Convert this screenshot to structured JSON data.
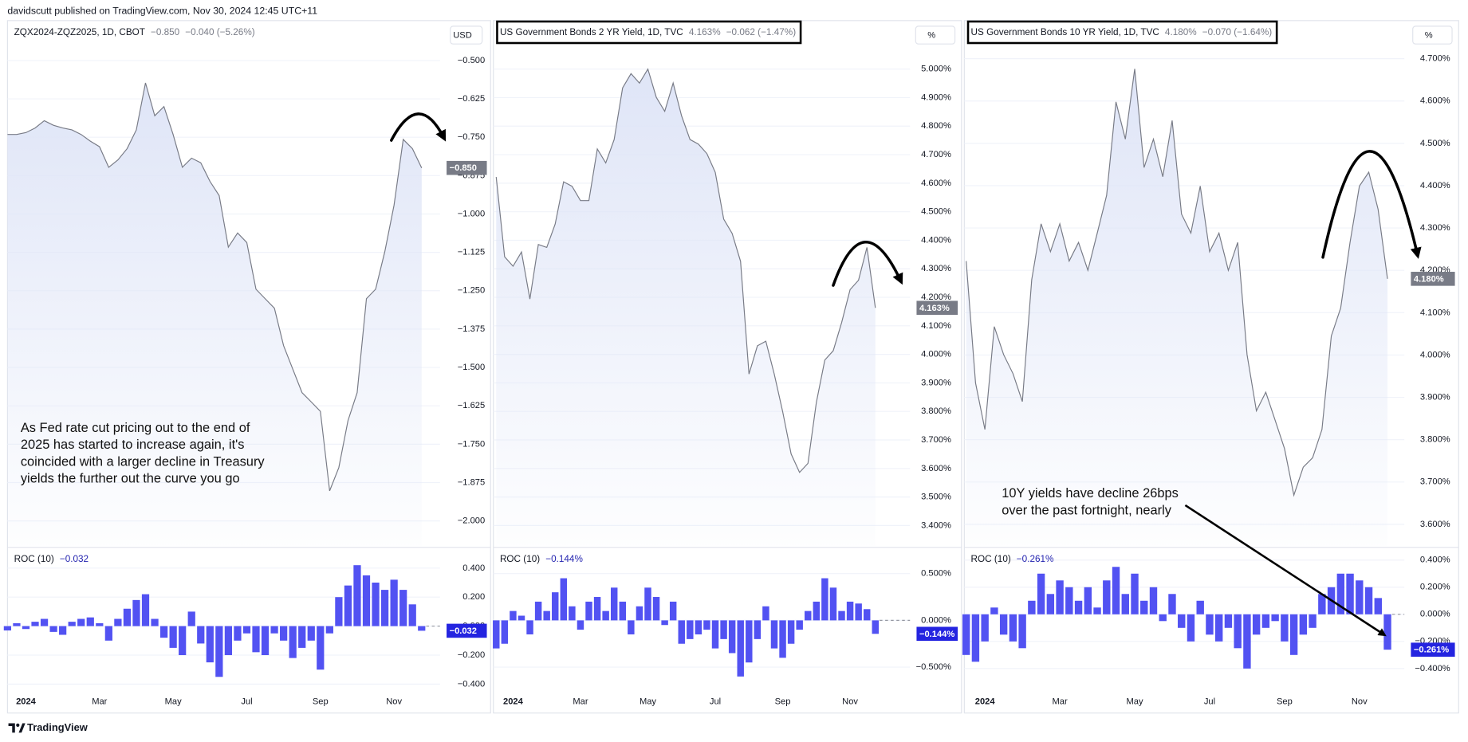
{
  "header": "davidscutt published on TradingView.com, Nov 30, 2024 12:45 UTC+11",
  "footer": "TradingView",
  "chart_data": [
    {
      "type": "area",
      "title": "ZQX2024-ZQZ2025, 1D, CBOT",
      "last_label": "−0.850",
      "change_label": "−0.040 (−5.26%)",
      "unit": "USD",
      "line_color": "#787b86",
      "area_color": "#dfe5f7",
      "tag_color": "#787b86",
      "grid": true,
      "categories": [
        null,
        null,
        "2024",
        null,
        null,
        null,
        null,
        null,
        null,
        null,
        "Mar",
        null,
        null,
        null,
        null,
        null,
        null,
        null,
        "May",
        null,
        null,
        null,
        null,
        null,
        null,
        null,
        "Jul",
        null,
        null,
        null,
        null,
        null,
        null,
        null,
        "Sep",
        null,
        null,
        null,
        null,
        null,
        null,
        null,
        "Nov",
        null,
        null,
        null
      ],
      "values": [
        -0.741,
        -0.741,
        -0.735,
        -0.72,
        -0.696,
        -0.711,
        -0.72,
        -0.726,
        -0.741,
        -0.763,
        -0.781,
        -0.848,
        -0.824,
        -0.787,
        -0.726,
        -0.573,
        -0.68,
        -0.65,
        -0.741,
        -0.848,
        -0.818,
        -0.833,
        -0.894,
        -0.94,
        -1.108,
        -1.062,
        -1.093,
        -1.245,
        -1.276,
        -1.307,
        -1.429,
        -1.505,
        -1.582,
        -1.612,
        -1.643,
        -1.902,
        -1.826,
        -1.673,
        -1.582,
        -1.276,
        -1.245,
        -1.123,
        -0.971,
        -0.757,
        -0.787,
        -0.85
      ],
      "ylim": [
        -2.08,
        -0.37
      ],
      "yticks": [
        {
          "value": -0.5,
          "label": "−0.500"
        },
        {
          "value": -0.625,
          "label": "−0.625"
        },
        {
          "value": -0.75,
          "label": "−0.750"
        },
        {
          "value": -0.875,
          "label": "−0.875"
        },
        {
          "value": -1.0,
          "label": "−1.000"
        },
        {
          "value": -1.125,
          "label": "−1.125"
        },
        {
          "value": -1.25,
          "label": "−1.250"
        },
        {
          "value": -1.375,
          "label": "−1.375"
        },
        {
          "value": -1.5,
          "label": "−1.500"
        },
        {
          "value": -1.625,
          "label": "−1.625"
        },
        {
          "value": -1.75,
          "label": "−1.750"
        },
        {
          "value": -1.875,
          "label": "−1.875"
        },
        {
          "value": -2.0,
          "label": "−2.000"
        }
      ],
      "annotation": [
        "As Fed rate cut pricing out to the end of",
        "2025 has started to increase again, it's",
        "coincided with a larger decline in Treasury",
        "yields the further out the curve you go"
      ],
      "roc": {
        "type": "bar",
        "title": "ROC (10)",
        "last_label": "−0.032",
        "color": "#5252f2",
        "tag_color": "#2424e0",
        "values": [
          -0.03,
          0.02,
          -0.02,
          0.03,
          0.05,
          -0.04,
          -0.06,
          0.03,
          0.05,
          0.06,
          0.02,
          -0.1,
          0.05,
          0.12,
          0.18,
          0.22,
          0.05,
          -0.08,
          -0.15,
          -0.2,
          0.1,
          -0.12,
          -0.25,
          -0.35,
          -0.2,
          -0.1,
          -0.05,
          -0.18,
          -0.2,
          -0.05,
          -0.1,
          -0.22,
          -0.15,
          -0.1,
          -0.3,
          -0.05,
          0.2,
          0.28,
          0.42,
          0.35,
          0.3,
          0.25,
          0.32,
          0.25,
          0.15,
          -0.032
        ],
        "ylim": [
          -0.47,
          0.53
        ],
        "yticks": [
          {
            "value": 0.4,
            "label": "0.400"
          },
          {
            "value": 0.2,
            "label": "0.200"
          },
          {
            "value": 0,
            "label": "0.000"
          },
          {
            "value": -0.2,
            "label": "−0.200"
          },
          {
            "value": -0.4,
            "label": "−0.400"
          }
        ]
      }
    },
    {
      "type": "area",
      "title": "US Government Bonds 2 YR Yield, 1D, TVC",
      "last_label": "4.163%",
      "change_label": "−0.062 (−1.47%)",
      "unit": "%",
      "line_color": "#787b86",
      "area_color": "#dfe5f7",
      "tag_color": "#787b86",
      "grid": true,
      "categories": [
        null,
        null,
        "2024",
        null,
        null,
        null,
        null,
        null,
        null,
        null,
        "Mar",
        null,
        null,
        null,
        null,
        null,
        null,
        null,
        "May",
        null,
        null,
        null,
        null,
        null,
        null,
        null,
        "Jul",
        null,
        null,
        null,
        null,
        null,
        null,
        null,
        "Sep",
        null,
        null,
        null,
        null,
        null,
        null,
        null,
        "Nov",
        null,
        null,
        null
      ],
      "values": [
        4.622,
        4.342,
        4.309,
        4.359,
        4.194,
        4.385,
        4.375,
        4.457,
        4.605,
        4.589,
        4.539,
        4.539,
        4.72,
        4.671,
        4.753,
        4.934,
        4.984,
        4.951,
        5.0,
        4.901,
        4.852,
        4.951,
        4.836,
        4.753,
        4.737,
        4.704,
        4.638,
        4.474,
        4.424,
        4.326,
        3.931,
        4.03,
        4.046,
        3.931,
        3.799,
        3.651,
        3.586,
        3.618,
        3.832,
        3.98,
        4.013,
        4.112,
        4.227,
        4.26,
        4.375,
        4.163
      ],
      "ylim": [
        3.33,
        5.17
      ],
      "yticks": [
        {
          "value": 5.0,
          "label": "5.000%"
        },
        {
          "value": 4.9,
          "label": "4.900%"
        },
        {
          "value": 4.8,
          "label": "4.800%"
        },
        {
          "value": 4.7,
          "label": "4.700%"
        },
        {
          "value": 4.6,
          "label": "4.600%"
        },
        {
          "value": 4.5,
          "label": "4.500%"
        },
        {
          "value": 4.4,
          "label": "4.400%"
        },
        {
          "value": 4.3,
          "label": "4.300%"
        },
        {
          "value": 4.2,
          "label": "4.200%"
        },
        {
          "value": 4.1,
          "label": "4.100%"
        },
        {
          "value": 4.0,
          "label": "4.000%"
        },
        {
          "value": 3.9,
          "label": "3.900%"
        },
        {
          "value": 3.8,
          "label": "3.800%"
        },
        {
          "value": 3.7,
          "label": "3.700%"
        },
        {
          "value": 3.6,
          "label": "3.600%"
        },
        {
          "value": 3.5,
          "label": "3.500%"
        },
        {
          "value": 3.4,
          "label": "3.400%"
        }
      ],
      "roc": {
        "type": "bar",
        "title": "ROC (10)",
        "last_label": "−0.144%",
        "color": "#5252f2",
        "tag_color": "#2424e0",
        "values": [
          -0.3,
          -0.25,
          0.1,
          0.05,
          -0.15,
          0.2,
          0.1,
          0.3,
          0.45,
          0.15,
          -0.1,
          0.2,
          0.25,
          0.1,
          0.35,
          0.2,
          -0.15,
          0.15,
          0.35,
          0.25,
          -0.05,
          0.2,
          -0.25,
          -0.2,
          -0.15,
          -0.1,
          -0.3,
          -0.2,
          -0.35,
          -0.6,
          -0.45,
          -0.2,
          0.15,
          -0.3,
          -0.4,
          -0.25,
          -0.1,
          0.1,
          0.2,
          0.45,
          0.35,
          0.1,
          0.2,
          0.18,
          0.12,
          -0.144
        ],
        "ylim": [
          -0.79,
          0.76
        ],
        "yticks": [
          {
            "value": 0.5,
            "label": "0.500%"
          },
          {
            "value": 0,
            "label": "0.000%"
          },
          {
            "value": -0.5,
            "label": "−0.500%"
          }
        ]
      }
    },
    {
      "type": "area",
      "title": "US Government Bonds 10 YR Yield, 1D, TVC",
      "last_label": "4.180%",
      "change_label": "−0.070 (−1.64%)",
      "unit": "%",
      "line_color": "#787b86",
      "area_color": "#dfe5f7",
      "tag_color": "#787b86",
      "grid": true,
      "categories": [
        null,
        null,
        "2024",
        null,
        null,
        null,
        null,
        null,
        null,
        null,
        "Mar",
        null,
        null,
        null,
        null,
        null,
        null,
        null,
        "May",
        null,
        null,
        null,
        null,
        null,
        null,
        null,
        "Jul",
        null,
        null,
        null,
        null,
        null,
        null,
        null,
        "Sep",
        null,
        null,
        null,
        null,
        null,
        null,
        null,
        "Nov",
        null,
        null,
        null
      ],
      "values": [
        4.222,
        3.934,
        3.824,
        4.067,
        4.001,
        3.956,
        3.89,
        4.178,
        4.31,
        4.244,
        4.31,
        4.222,
        4.266,
        4.2,
        4.288,
        4.377,
        4.598,
        4.51,
        4.676,
        4.443,
        4.51,
        4.421,
        4.554,
        4.333,
        4.288,
        4.399,
        4.244,
        4.288,
        4.2,
        4.266,
        4.001,
        3.868,
        3.912,
        3.846,
        3.779,
        3.669,
        3.735,
        3.757,
        3.824,
        4.045,
        4.111,
        4.266,
        4.399,
        4.432,
        4.344,
        4.18
      ],
      "ylim": [
        3.55,
        4.79
      ],
      "yticks": [
        {
          "value": 4.7,
          "label": "4.700%"
        },
        {
          "value": 4.6,
          "label": "4.600%"
        },
        {
          "value": 4.5,
          "label": "4.500%"
        },
        {
          "value": 4.4,
          "label": "4.400%"
        },
        {
          "value": 4.3,
          "label": "4.300%"
        },
        {
          "value": 4.2,
          "label": "4.200%"
        },
        {
          "value": 4.1,
          "label": "4.100%"
        },
        {
          "value": 4.0,
          "label": "4.000%"
        },
        {
          "value": 3.9,
          "label": "3.900%"
        },
        {
          "value": 3.8,
          "label": "3.800%"
        },
        {
          "value": 3.7,
          "label": "3.700%"
        },
        {
          "value": 3.6,
          "label": "3.600%"
        }
      ],
      "annotation": [
        "10Y yields have decline 26bps",
        "over the past fortnight, nearly"
      ],
      "roc": {
        "type": "bar",
        "title": "ROC (10)",
        "last_label": "−0.261%",
        "color": "#5252f2",
        "tag_color": "#2424e0",
        "values": [
          -0.3,
          -0.35,
          -0.2,
          0.05,
          -0.15,
          -0.2,
          -0.25,
          0.1,
          0.3,
          0.15,
          0.25,
          0.2,
          0.1,
          0.2,
          0.05,
          0.25,
          0.35,
          0.15,
          0.3,
          0.1,
          0.2,
          -0.05,
          0.15,
          -0.1,
          -0.2,
          0.1,
          -0.15,
          -0.2,
          -0.1,
          -0.25,
          -0.4,
          -0.15,
          -0.1,
          -0.05,
          -0.2,
          -0.3,
          -0.15,
          -0.1,
          0.15,
          0.2,
          0.3,
          0.3,
          0.25,
          0.2,
          0.12,
          -0.261
        ],
        "ylim": [
          -0.59,
          0.48
        ],
        "yticks": [
          {
            "value": 0.4,
            "label": "0.400%"
          },
          {
            "value": 0.2,
            "label": "0.200%"
          },
          {
            "value": 0,
            "label": "0.000%"
          },
          {
            "value": -0.2,
            "label": "−0.200%"
          },
          {
            "value": -0.4,
            "label": "−0.400%"
          }
        ]
      }
    }
  ]
}
